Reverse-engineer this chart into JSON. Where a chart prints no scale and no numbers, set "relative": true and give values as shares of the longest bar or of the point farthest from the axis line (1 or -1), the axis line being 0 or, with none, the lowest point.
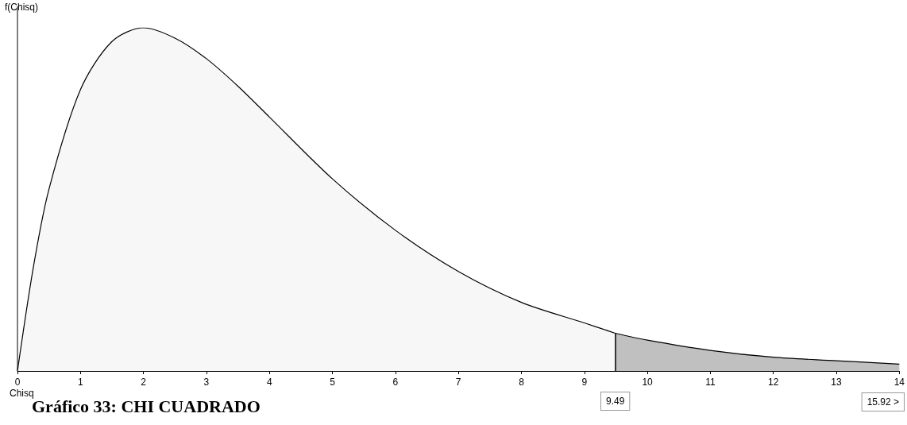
{
  "chart_data": {
    "type": "area",
    "title": "Gráfico 33: CHI CUADRADO",
    "xlabel": "Chisq",
    "ylabel": "f(Chisq)",
    "relative": true,
    "xlim": [
      0,
      14
    ],
    "xticks": [
      0,
      1,
      2,
      3,
      4,
      5,
      6,
      7,
      8,
      9,
      10,
      11,
      12,
      13,
      14
    ],
    "series": [
      {
        "color": "#f7f7f7",
        "x": [
          0,
          0.25,
          0.5,
          1,
          1.5,
          2,
          2.5,
          3,
          3.5,
          4,
          5,
          6,
          7,
          8,
          9,
          9.49
        ],
        "values": [
          0,
          0.3,
          0.53,
          0.82,
          0.96,
          1,
          0.97,
          0.91,
          0.83,
          0.74,
          0.56,
          0.41,
          0.29,
          0.2,
          0.14,
          0.11
        ]
      },
      {
        "color": "#c0c0c0",
        "x": [
          9.49,
          10,
          11,
          12,
          13,
          14
        ],
        "values": [
          0.11,
          0.09,
          0.06,
          0.04,
          0.03,
          0.02
        ]
      }
    ],
    "ref_lines": [
      {
        "axis": "x",
        "value": 9.49,
        "label": "9.49",
        "color": "#000000"
      }
    ],
    "annotations": [
      "15.92 >"
    ]
  }
}
